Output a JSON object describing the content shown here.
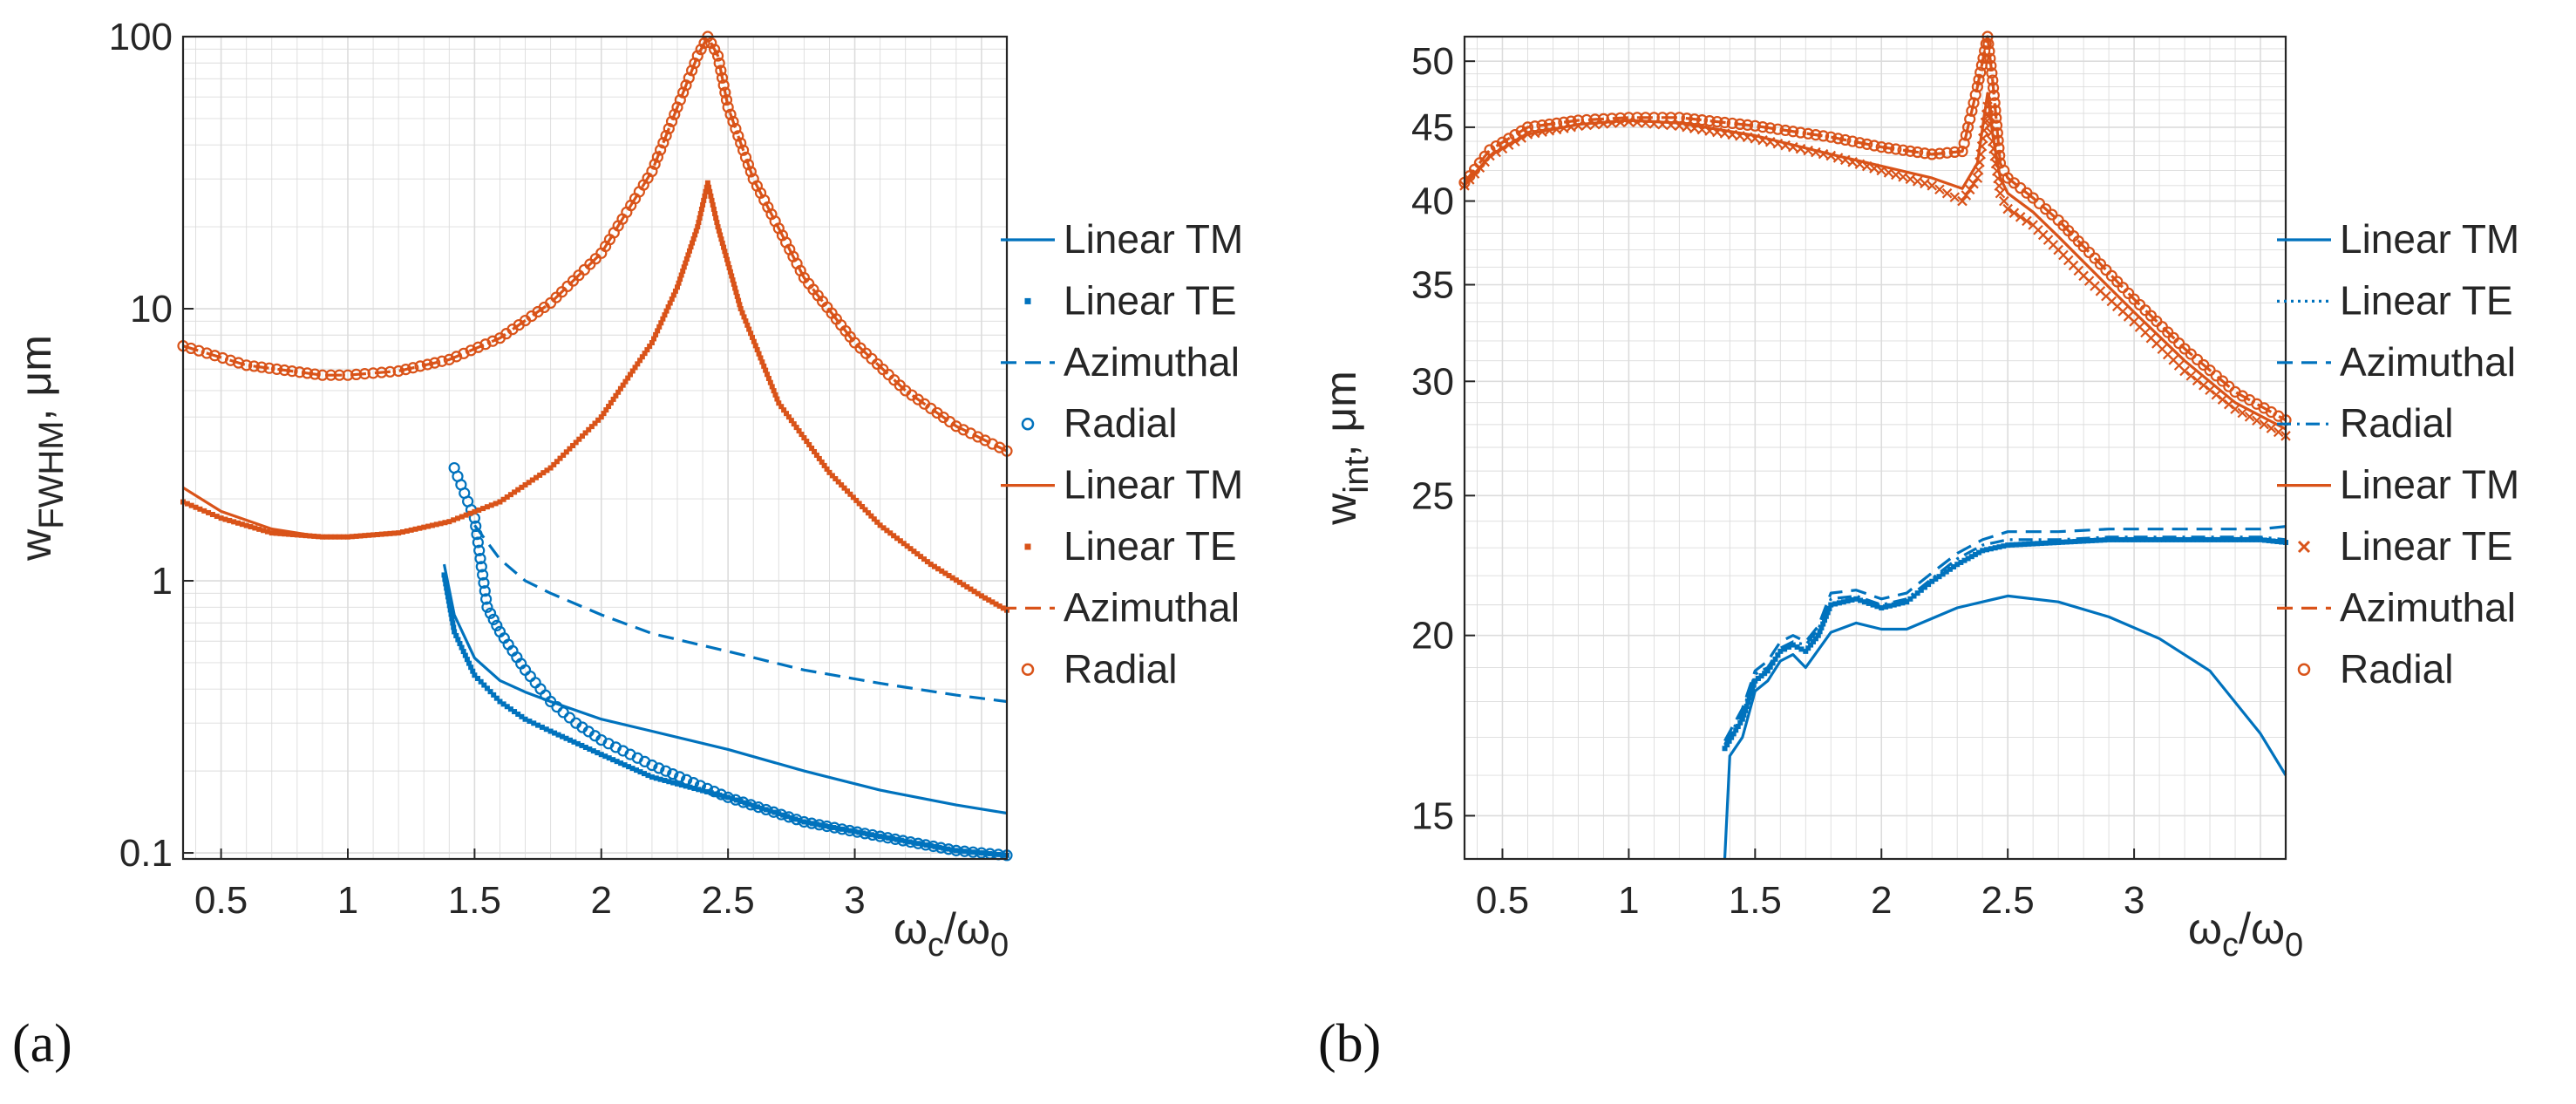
{
  "panels": {
    "a": "(a)",
    "b": "(b)"
  },
  "colors": {
    "blue": "#0072BD",
    "orange": "#D95319",
    "axis": "#262626",
    "grid": "#dcdcdc"
  },
  "chart_data": [
    {
      "type": "line",
      "id": "a",
      "title": "",
      "ylabel_main": "w",
      "ylabel_sub": "FWHM",
      "ylabel_tail": ", μm",
      "xlabel_main": "ω",
      "xlabel_sub": "c",
      "xlabel_mid": "/ω",
      "xlabel_sub2": "0",
      "yscale": "log",
      "xlim": [
        0.35,
        3.6
      ],
      "ylim": [
        0.095,
        100
      ],
      "xticks": [
        0.5,
        1,
        1.5,
        2,
        2.5,
        3
      ],
      "xticklabels": [
        "0.5",
        "1",
        "1.5",
        "2",
        "2.5",
        "3"
      ],
      "yticks": [
        0.1,
        1,
        10,
        100
      ],
      "yticklabels": [
        "0.1",
        "1",
        "10",
        "100"
      ],
      "legend": [
        {
          "label": "Linear TM",
          "color": "blue",
          "style": "solid"
        },
        {
          "label": "Linear TE",
          "color": "blue",
          "style": "dot"
        },
        {
          "label": "Azimuthal",
          "color": "blue",
          "style": "dash"
        },
        {
          "label": "Radial",
          "color": "blue",
          "style": "circle"
        },
        {
          "label": "Linear TM",
          "color": "orange",
          "style": "solid"
        },
        {
          "label": "Linear TE",
          "color": "orange",
          "style": "dot"
        },
        {
          "label": "Azimuthal",
          "color": "orange",
          "style": "dash"
        },
        {
          "label": "Radial",
          "color": "orange",
          "style": "circle"
        }
      ],
      "series": [
        {
          "name": "Linear TM",
          "color": "blue",
          "style": "solid",
          "x": [
            1.38,
            1.42,
            1.5,
            1.6,
            1.7,
            1.8,
            2.0,
            2.2,
            2.5,
            2.8,
            3.1,
            3.4,
            3.6
          ],
          "y": [
            1.15,
            0.75,
            0.52,
            0.43,
            0.39,
            0.36,
            0.31,
            0.28,
            0.24,
            0.2,
            0.17,
            0.15,
            0.14
          ]
        },
        {
          "name": "Linear TE",
          "color": "blue",
          "style": "dot",
          "x": [
            1.38,
            1.42,
            1.5,
            1.6,
            1.7,
            1.8,
            2.0,
            2.2,
            2.5,
            2.8,
            3.1,
            3.4,
            3.6
          ],
          "y": [
            1.05,
            0.65,
            0.45,
            0.36,
            0.31,
            0.28,
            0.23,
            0.19,
            0.16,
            0.13,
            0.115,
            0.102,
            0.098
          ]
        },
        {
          "name": "Azimuthal",
          "color": "blue",
          "style": "dash",
          "x": [
            1.5,
            1.6,
            1.7,
            1.8,
            2.0,
            2.2,
            2.5,
            2.8,
            3.1,
            3.4,
            3.6
          ],
          "y": [
            1.6,
            1.2,
            1.0,
            0.9,
            0.75,
            0.64,
            0.55,
            0.47,
            0.42,
            0.38,
            0.36
          ]
        },
        {
          "name": "Radial",
          "color": "blue",
          "style": "circle",
          "x": [
            1.42,
            1.46,
            1.5,
            1.55,
            1.6,
            1.7,
            1.8,
            1.9,
            2.0,
            2.2,
            2.5,
            2.8,
            3.1,
            3.4,
            3.6
          ],
          "y": [
            2.6,
            2.1,
            1.7,
            0.8,
            0.65,
            0.47,
            0.36,
            0.3,
            0.26,
            0.21,
            0.16,
            0.13,
            0.115,
            0.102,
            0.098
          ]
        },
        {
          "name": "Linear TM",
          "color": "orange",
          "style": "solid",
          "x": [
            0.35,
            0.5,
            0.7,
            0.9,
            1.0,
            1.2,
            1.4,
            1.6,
            1.8,
            2.0,
            2.2,
            2.3,
            2.38,
            2.42,
            2.46,
            2.55,
            2.7,
            2.9,
            3.1,
            3.3,
            3.5,
            3.6
          ],
          "y": [
            2.2,
            1.8,
            1.55,
            1.45,
            1.45,
            1.5,
            1.65,
            1.95,
            2.6,
            4.0,
            7.5,
            12,
            20,
            29,
            20,
            10,
            4.5,
            2.5,
            1.6,
            1.15,
            0.88,
            0.78
          ]
        },
        {
          "name": "Linear TE",
          "color": "orange",
          "style": "dot",
          "x": [
            0.35,
            0.5,
            0.7,
            0.9,
            1.0,
            1.2,
            1.4,
            1.6,
            1.8,
            2.0,
            2.2,
            2.3,
            2.38,
            2.42,
            2.46,
            2.55,
            2.7,
            2.9,
            3.1,
            3.3,
            3.5,
            3.6
          ],
          "y": [
            1.95,
            1.7,
            1.5,
            1.45,
            1.45,
            1.5,
            1.65,
            1.95,
            2.6,
            4.0,
            7.5,
            12,
            20,
            29,
            20,
            10,
            4.5,
            2.5,
            1.6,
            1.15,
            0.88,
            0.78
          ]
        },
        {
          "name": "Azimuthal",
          "color": "orange",
          "style": "dash",
          "x": [
            0.35,
            0.6,
            0.9,
            1.0,
            1.2,
            1.4,
            1.6,
            1.8,
            2.0,
            2.2,
            2.3,
            2.38,
            2.42,
            2.46,
            2.5,
            2.6,
            2.8,
            3.0,
            3.2,
            3.4,
            3.6
          ],
          "y": [
            7.3,
            6.2,
            5.7,
            5.7,
            5.9,
            6.5,
            7.8,
            10.5,
            16,
            32,
            55,
            85,
            100,
            85,
            55,
            30,
            13,
            7.5,
            5.0,
            3.7,
            3.0
          ]
        },
        {
          "name": "Radial",
          "color": "orange",
          "style": "circle",
          "x": [
            0.35,
            0.6,
            0.9,
            1.0,
            1.2,
            1.4,
            1.6,
            1.8,
            2.0,
            2.2,
            2.3,
            2.38,
            2.42,
            2.46,
            2.5,
            2.6,
            2.8,
            3.0,
            3.2,
            3.4,
            3.6
          ],
          "y": [
            7.3,
            6.2,
            5.7,
            5.7,
            5.9,
            6.5,
            7.8,
            10.5,
            16,
            32,
            55,
            85,
            100,
            85,
            55,
            30,
            13,
            7.5,
            5.0,
            3.7,
            3.0
          ]
        }
      ]
    },
    {
      "type": "line",
      "id": "b",
      "title": "",
      "ylabel_main": "w",
      "ylabel_sub": "int",
      "ylabel_tail": ", μm",
      "xlabel_main": "ω",
      "xlabel_sub": "c",
      "xlabel_mid": "/ω",
      "xlabel_sub2": "0",
      "yscale": "log",
      "xlim": [
        0.35,
        3.6
      ],
      "ylim": [
        14,
        52
      ],
      "xticks": [
        0.5,
        1,
        1.5,
        2,
        2.5,
        3
      ],
      "xticklabels": [
        "0.5",
        "1",
        "1.5",
        "2",
        "2.5",
        "3"
      ],
      "yticks": [
        15,
        20,
        25,
        30,
        35,
        40,
        45,
        50
      ],
      "yticklabels": [
        "15",
        "20",
        "25",
        "30",
        "35",
        "40",
        "45",
        "50"
      ],
      "legend": [
        {
          "label": "Linear TM",
          "color": "blue",
          "style": "solid"
        },
        {
          "label": "Linear TE",
          "color": "blue",
          "style": "dot"
        },
        {
          "label": "Azimuthal",
          "color": "blue",
          "style": "dash"
        },
        {
          "label": "Radial",
          "color": "blue",
          "style": "dashdot"
        },
        {
          "label": "Linear TM",
          "color": "orange",
          "style": "solid"
        },
        {
          "label": "Linear TE",
          "color": "orange",
          "style": "cross"
        },
        {
          "label": "Azimuthal",
          "color": "orange",
          "style": "dash"
        },
        {
          "label": "Radial",
          "color": "orange",
          "style": "circle"
        }
      ],
      "series": [
        {
          "name": "Linear TM",
          "color": "blue",
          "style": "solid",
          "x": [
            1.38,
            1.4,
            1.45,
            1.5,
            1.55,
            1.6,
            1.65,
            1.7,
            1.8,
            1.9,
            2.0,
            2.1,
            2.3,
            2.5,
            2.7,
            2.9,
            3.1,
            3.3,
            3.5,
            3.6
          ],
          "y": [
            14,
            16.5,
            17.0,
            18.3,
            18.6,
            19.2,
            19.4,
            19.0,
            20.1,
            20.4,
            20.2,
            20.2,
            20.9,
            21.3,
            21.1,
            20.6,
            19.9,
            18.9,
            17.1,
            16.0
          ]
        },
        {
          "name": "Linear TE",
          "color": "blue",
          "style": "dot",
          "x": [
            1.38,
            1.45,
            1.5,
            1.55,
            1.6,
            1.65,
            1.7,
            1.75,
            1.8,
            1.9,
            2.0,
            2.1,
            2.2,
            2.3,
            2.4,
            2.5,
            2.7,
            2.9,
            3.1,
            3.3,
            3.5,
            3.6
          ],
          "y": [
            16.7,
            17.5,
            18.6,
            18.9,
            19.5,
            19.7,
            19.5,
            20.0,
            21.0,
            21.2,
            20.9,
            21.1,
            21.8,
            22.4,
            22.9,
            23.1,
            23.2,
            23.3,
            23.3,
            23.3,
            23.3,
            23.2
          ]
        },
        {
          "name": "Azimuthal",
          "color": "blue",
          "style": "dash",
          "x": [
            1.38,
            1.45,
            1.5,
            1.55,
            1.6,
            1.65,
            1.7,
            1.75,
            1.8,
            1.9,
            2.0,
            2.1,
            2.2,
            2.3,
            2.4,
            2.5,
            2.7,
            2.9,
            3.1,
            3.3,
            3.5,
            3.6
          ],
          "y": [
            16.9,
            17.8,
            18.9,
            19.2,
            19.8,
            20.0,
            19.8,
            20.3,
            21.4,
            21.5,
            21.2,
            21.4,
            22.1,
            22.8,
            23.3,
            23.6,
            23.6,
            23.7,
            23.7,
            23.7,
            23.7,
            23.8
          ]
        },
        {
          "name": "Radial",
          "color": "blue",
          "style": "dashdot",
          "x": [
            1.38,
            1.45,
            1.5,
            1.55,
            1.6,
            1.65,
            1.7,
            1.75,
            1.8,
            1.9,
            2.0,
            2.1,
            2.2,
            2.3,
            2.4,
            2.5,
            2.7,
            2.9,
            3.1,
            3.3,
            3.5,
            3.6
          ],
          "y": [
            16.8,
            17.7,
            18.8,
            19.0,
            19.6,
            19.8,
            19.7,
            20.2,
            21.2,
            21.3,
            21.0,
            21.2,
            21.9,
            22.6,
            23.1,
            23.3,
            23.3,
            23.4,
            23.4,
            23.4,
            23.4,
            23.3
          ]
        },
        {
          "name": "Linear TM",
          "color": "orange",
          "style": "solid",
          "x": [
            0.35,
            0.45,
            0.6,
            0.8,
            1.0,
            1.2,
            1.5,
            1.8,
            2.0,
            2.2,
            2.32,
            2.38,
            2.42,
            2.44,
            2.47,
            2.5,
            2.6,
            2.7,
            2.8,
            3.0,
            3.2,
            3.4,
            3.6
          ],
          "y": [
            41.0,
            43.0,
            44.5,
            45.2,
            45.5,
            45.3,
            44.4,
            43.1,
            42.3,
            41.5,
            40.8,
            42.5,
            47.5,
            44.5,
            41.5,
            40.5,
            39.3,
            37.8,
            36.3,
            33.5,
            31.0,
            29.0,
            27.8
          ]
        },
        {
          "name": "Linear TE",
          "color": "orange",
          "style": "cross",
          "x": [
            0.35,
            0.45,
            0.6,
            0.8,
            1.0,
            1.2,
            1.5,
            1.8,
            2.0,
            2.2,
            2.32,
            2.38,
            2.42,
            2.44,
            2.47,
            2.5,
            2.6,
            2.7,
            2.8,
            3.0,
            3.2,
            3.4,
            3.6
          ],
          "y": [
            41.0,
            43.0,
            44.5,
            45.1,
            45.4,
            45.1,
            44.2,
            43.0,
            42.0,
            41.0,
            40.0,
            41.5,
            46.5,
            44.0,
            40.5,
            39.5,
            38.5,
            37.0,
            35.5,
            33.0,
            30.5,
            28.7,
            27.5
          ]
        },
        {
          "name": "Azimuthal",
          "color": "orange",
          "style": "dash",
          "x": [
            0.35,
            0.45,
            0.6,
            0.8,
            1.0,
            1.2,
            1.5,
            1.8,
            2.0,
            2.2,
            2.32,
            2.38,
            2.42,
            2.44,
            2.47,
            2.5,
            2.6,
            2.7,
            2.8,
            3.0,
            3.2,
            3.4,
            3.6
          ],
          "y": [
            41.2,
            43.4,
            45.0,
            45.5,
            45.7,
            45.7,
            45.1,
            44.3,
            43.6,
            43.1,
            43.3,
            48.0,
            52.0,
            48.5,
            42.5,
            41.5,
            40.2,
            38.8,
            37.2,
            34.2,
            31.6,
            29.5,
            28.2
          ]
        },
        {
          "name": "Radial",
          "color": "orange",
          "style": "circle",
          "x": [
            0.35,
            0.45,
            0.6,
            0.8,
            1.0,
            1.2,
            1.5,
            1.8,
            2.0,
            2.2,
            2.32,
            2.38,
            2.42,
            2.44,
            2.47,
            2.5,
            2.6,
            2.7,
            2.8,
            3.0,
            3.2,
            3.4,
            3.6
          ],
          "y": [
            41.2,
            43.4,
            45.0,
            45.5,
            45.7,
            45.7,
            45.1,
            44.3,
            43.6,
            43.1,
            43.3,
            48.0,
            52.0,
            48.5,
            42.5,
            41.5,
            40.2,
            38.8,
            37.2,
            34.2,
            31.6,
            29.5,
            28.2
          ]
        }
      ]
    }
  ]
}
